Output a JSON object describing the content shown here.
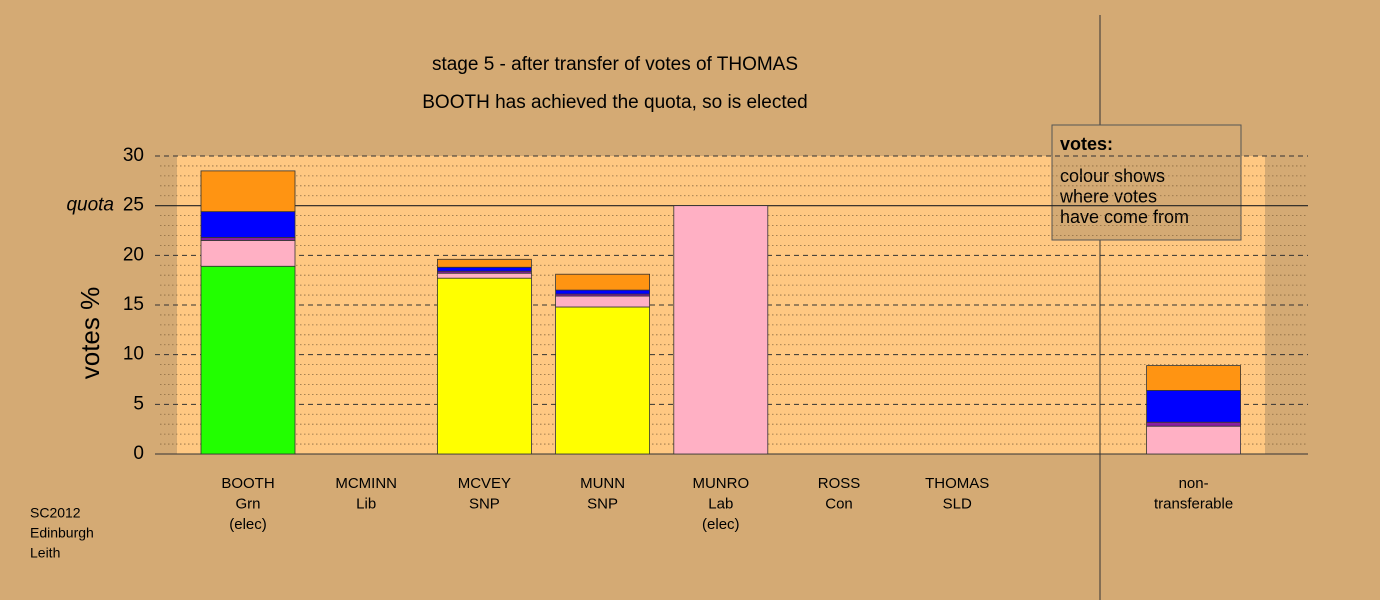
{
  "chart_data": {
    "type": "stacked-bar",
    "title": [
      "stage 5 - after transfer of votes of THOMAS",
      "BOOTH has achieved the quota, so is elected"
    ],
    "y_label": "votes %",
    "categories": [
      [
        "BOOTH",
        "Grn",
        "(elec)"
      ],
      [
        "MCMINN",
        "Lib"
      ],
      [
        "MCVEY",
        "SNP"
      ],
      [
        "MUNN",
        "SNP"
      ],
      [
        "MUNRO",
        "Lab",
        "(elec)"
      ],
      [
        "ROSS",
        "Con"
      ],
      [
        "THOMAS",
        "SLD"
      ],
      null,
      [
        "non-",
        "transferable"
      ]
    ],
    "series": [
      {
        "color": "#22ff00",
        "values": [
          18.9,
          0,
          0,
          0,
          0,
          0,
          0,
          null,
          0
        ]
      },
      {
        "color": "#ffff00",
        "values": [
          0,
          0,
          17.7,
          14.8,
          0,
          0,
          0,
          null,
          0
        ]
      },
      {
        "color": "#ffb0c4",
        "values": [
          2.6,
          0,
          0.5,
          1.1,
          25,
          0,
          0,
          null,
          2.8
        ]
      },
      {
        "color": "#8a1fa0",
        "values": [
          0.3,
          0,
          0.2,
          0.2,
          0,
          0,
          0,
          null,
          0.4
        ]
      },
      {
        "color": "#0000ff",
        "values": [
          2.6,
          0,
          0.4,
          0.4,
          0,
          0,
          0,
          null,
          3.2
        ]
      },
      {
        "color": "#ff9412",
        "values": [
          4.1,
          0,
          0.8,
          1.6,
          0,
          0,
          0,
          null,
          2.5
        ]
      }
    ],
    "ylim": [
      0,
      30
    ],
    "yticks": [
      0,
      5,
      10,
      15,
      20,
      25,
      30
    ],
    "quota": {
      "value": 25,
      "label": "quota"
    },
    "grid": true,
    "legend": {
      "title": "votes:",
      "lines": [
        "colour shows",
        "where votes",
        "have come from"
      ]
    },
    "footer": [
      "SC2012",
      "Edinburgh",
      "Leith"
    ]
  }
}
